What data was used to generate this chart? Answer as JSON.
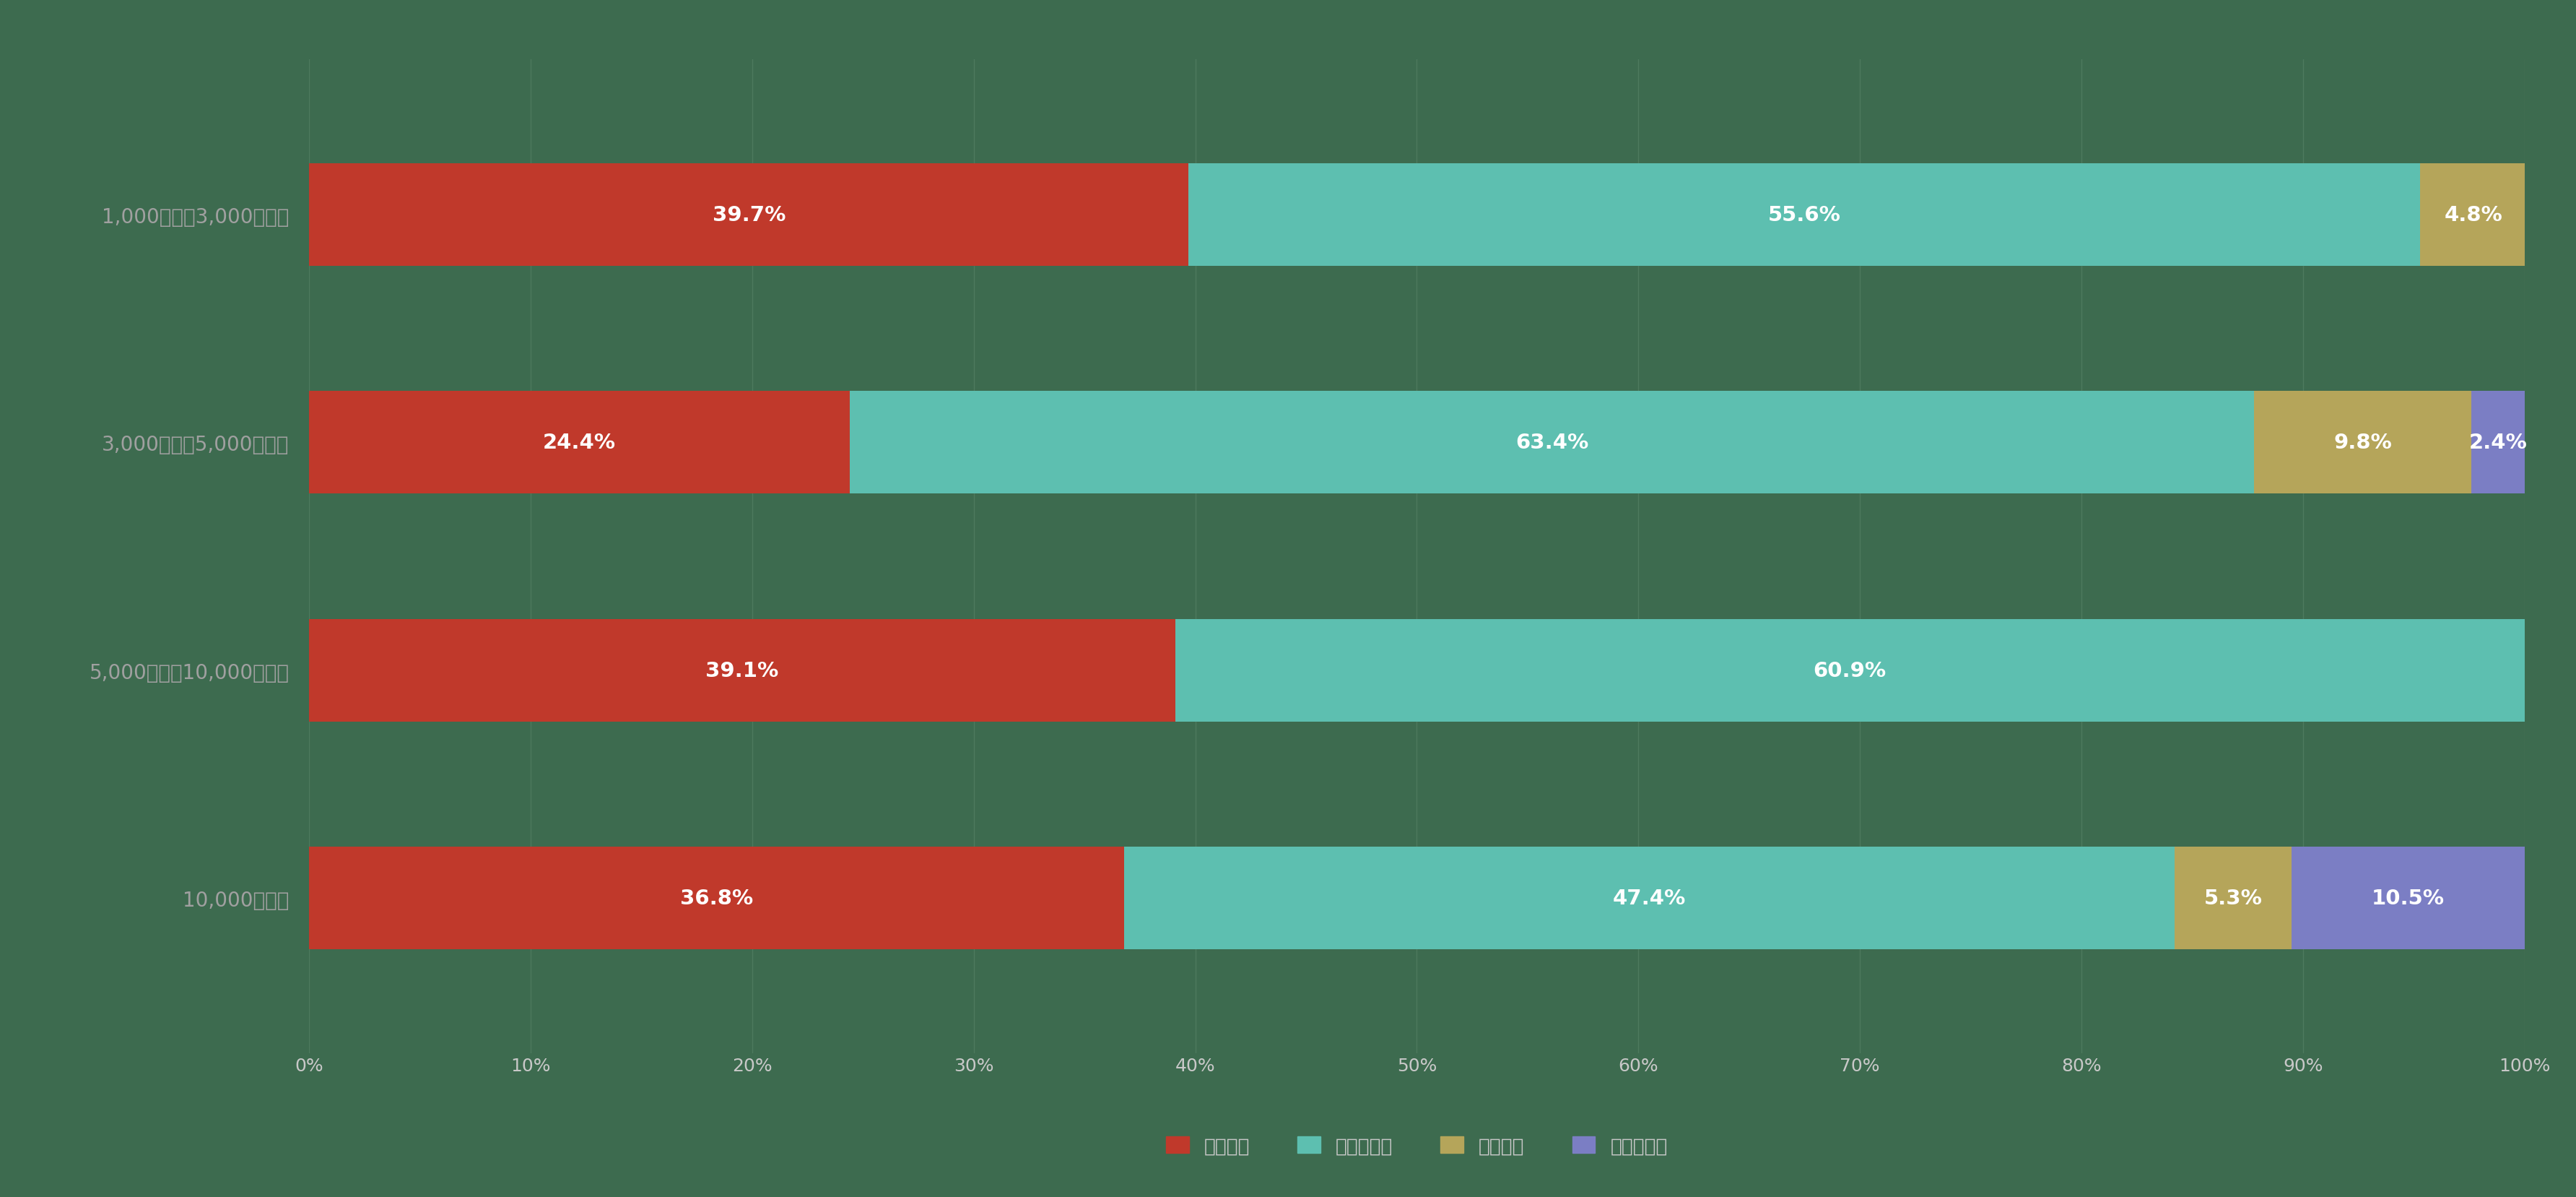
{
  "categories": [
    "1,000名以上3,000名未満",
    "3,000名以上5,000名未満",
    "5,000名以上10,000名未満",
    "10,000名以上"
  ],
  "series": [
    {
      "label": "増加した",
      "color": "#c0392b",
      "values": [
        39.7,
        24.4,
        39.1,
        36.8
      ]
    },
    {
      "label": "変わらない",
      "color": "#5dbfb0",
      "values": [
        55.6,
        63.4,
        60.9,
        47.4
      ]
    },
    {
      "label": "減少した",
      "color": "#b5a55a",
      "values": [
        4.8,
        9.8,
        0.0,
        5.3
      ]
    },
    {
      "label": "わからない",
      "color": "#7b7ec4",
      "values": [
        0.0,
        2.4,
        0.0,
        10.5
      ]
    }
  ],
  "background_color": "#3d6b4f",
  "bar_height": 0.45,
  "xlim": [
    0,
    100
  ],
  "xticks": [
    0,
    10,
    20,
    30,
    40,
    50,
    60,
    70,
    80,
    90,
    100
  ],
  "xtick_labels": [
    "0%",
    "10%",
    "20%",
    "30%",
    "40%",
    "50%",
    "60%",
    "70%",
    "80%",
    "90%",
    "100%"
  ],
  "grid_color": "#4d7a5e",
  "text_color": "#c8c8c8",
  "label_fontsize": 20,
  "tick_fontsize": 18,
  "legend_fontsize": 19,
  "bar_label_fontsize": 21,
  "value_text_color": "#ffffff",
  "ytick_color": "#a0a0a0"
}
